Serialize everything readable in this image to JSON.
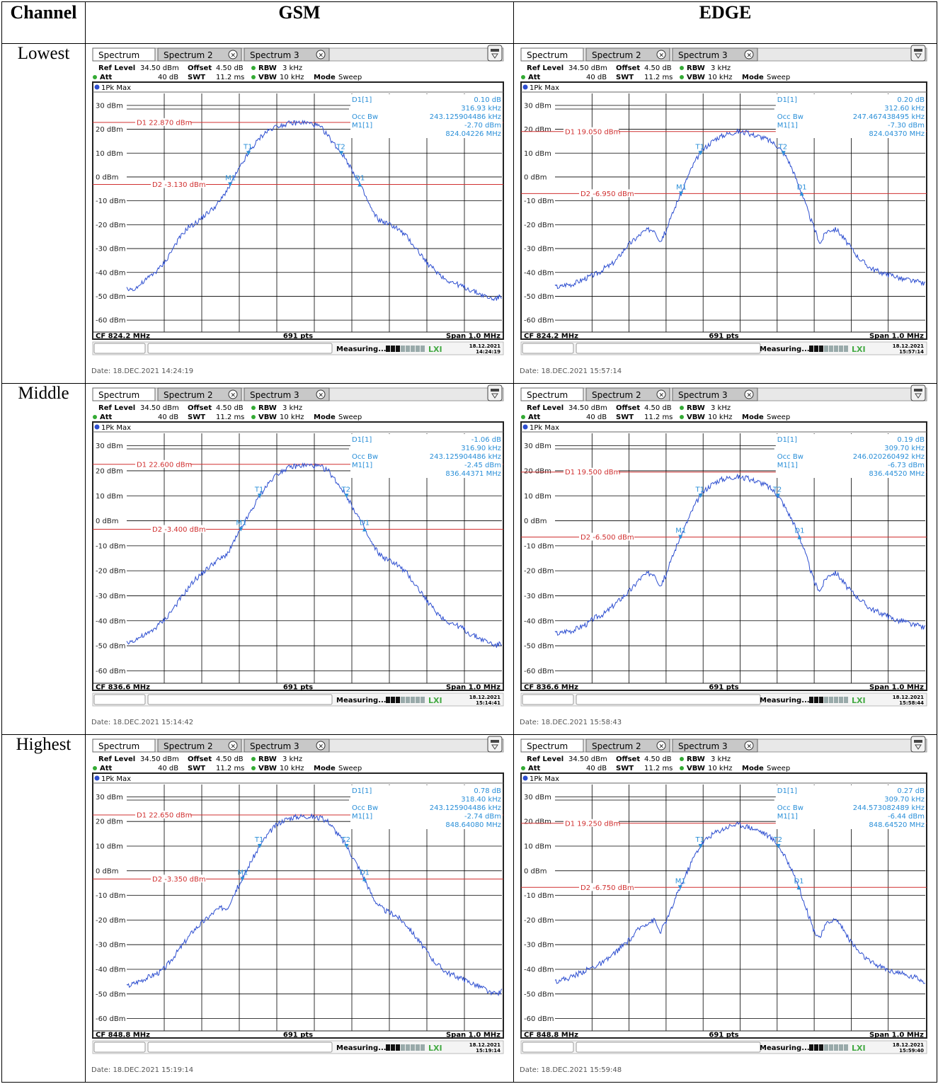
{
  "table": {
    "headers": [
      "Channel",
      "GSM",
      "EDGE"
    ],
    "rows": [
      {
        "label": "Lowest"
      },
      {
        "label": "Middle"
      },
      {
        "label": "Highest"
      }
    ]
  },
  "ui": {
    "tabs": [
      "Spectrum",
      "Spectrum 2",
      "Spectrum 3"
    ],
    "ref_level_label": "Ref Level",
    "ref_level_value": "34.50 dBm",
    "offset_label": "Offset",
    "offset_value": "4.50 dB",
    "rbw_label": "RBW",
    "rbw_value": "3 kHz",
    "att_label": "Att",
    "att_value": "40 dB",
    "swt_label": "SWT",
    "swt_value": "11.2 ms",
    "vbw_label": "VBW",
    "vbw_value": "10 kHz",
    "mode_label": "Mode",
    "mode_value": "Sweep",
    "trace_label": "1Pk Max",
    "pts_label": "691 pts",
    "span_label": "Span 1.0 MHz",
    "measuring_label": "Measuring...",
    "d1_label": "D1[1]",
    "occbw_label": "Occ Bw",
    "m1_label": "M1[1]",
    "y_ticks": [
      "30 dBm",
      "20 dBm",
      "10 dBm",
      "0 dBm",
      "-10 dBm",
      "-20 dBm",
      "-30 dBm",
      "-40 dBm",
      "-50 dBm",
      "-60 dBm"
    ],
    "marker_T1": "T1",
    "marker_T2": "T2",
    "marker_M1": "M1",
    "marker_D1": "D1"
  },
  "chart_data": [
    {
      "type": "line",
      "id": "gsm-lowest",
      "cf": "CF 824.2 MHz",
      "d1_line": "D1 22.870 dBm",
      "d2_line": "D2 -3.130 dBm",
      "d1_db": "0.10 dB",
      "d1_khz": "316.93 kHz",
      "occ_bw": "243.125904486 kHz",
      "m1_dbm": "-2.70 dBm",
      "m1_mhz": "824.04226 MHz",
      "time": "18.12.2021",
      "time2": "14:24:19",
      "date": "Date: 18.DEC.2021  14:24:19",
      "ylim": [
        -65,
        35
      ],
      "d1_level": 22.87,
      "d2_level": -3.13,
      "series": [
        {
          "values": [
            -47,
            -47,
            -46,
            -44,
            -42,
            -40,
            -38,
            -35,
            -31,
            -27,
            -24,
            -21,
            -20,
            -18,
            -16,
            -14,
            -12,
            -9,
            -5,
            -1,
            3,
            7,
            11,
            14,
            17,
            19,
            20.5,
            21.5,
            22,
            22.4,
            22.6,
            22.8,
            22.7,
            22.3,
            21.5,
            20,
            17,
            14,
            11,
            8,
            4,
            0,
            -5,
            -10,
            -15,
            -18,
            -19,
            -20,
            -21,
            -23,
            -25,
            -28,
            -31,
            -34,
            -37,
            -39,
            -41,
            -43,
            -44,
            -45,
            -46,
            -47,
            -48,
            -49,
            -50,
            -51,
            -51,
            -50
          ]
        }
      ]
    },
    {
      "type": "line",
      "id": "edge-lowest",
      "cf": "CF 824.2 MHz",
      "d1_line": "D1 19.050 dBm",
      "d2_line": "D2 -6.950 dBm",
      "d1_db": "0.20 dB",
      "d1_khz": "312.60 kHz",
      "occ_bw": "247.467438495 kHz",
      "m1_dbm": "-7.30 dBm",
      "m1_mhz": "824.04370 MHz",
      "time": "18.12.2021",
      "time2": "15:57:14",
      "date": "Date: 18.DEC.2021  15:57:14",
      "ylim": [
        -65,
        35
      ],
      "d1_level": 19.05,
      "d2_level": -6.95,
      "series": [
        {
          "values": [
            -46,
            -46,
            -45,
            -45,
            -44,
            -43,
            -42,
            -41,
            -40,
            -38,
            -37,
            -35,
            -32,
            -29,
            -27,
            -25,
            -23,
            -22,
            -22,
            -27,
            -23,
            -17,
            -11,
            -6,
            0,
            5,
            9,
            12,
            14,
            16,
            17,
            18,
            18.5,
            19,
            18.8,
            18.2,
            17.6,
            17,
            16.2,
            15,
            13.5,
            11,
            8,
            3,
            -3,
            -9,
            -16,
            -22,
            -28,
            -23,
            -22,
            -22,
            -25,
            -28,
            -31,
            -34,
            -36,
            -38,
            -39,
            -40,
            -41,
            -41,
            -42,
            -43,
            -43,
            -44,
            -44,
            -45
          ]
        }
      ]
    },
    {
      "type": "line",
      "id": "gsm-middle",
      "cf": "CF 836.6 MHz",
      "d1_line": "D1 22.600 dBm",
      "d2_line": "D2 -3.400 dBm",
      "d1_db": "-1.06 dB",
      "d1_khz": "316.90 kHz",
      "occ_bw": "243.125904486 kHz",
      "m1_dbm": "-2.45 dBm",
      "m1_mhz": "836.44371 MHz",
      "time": "18.12.2021",
      "time2": "15:14:41",
      "date": "Date: 18.DEC.2021  15:14:42",
      "ylim": [
        -65,
        35
      ],
      "d1_level": 22.6,
      "d2_level": -3.4,
      "series": [
        {
          "values": [
            -49,
            -48,
            -47,
            -46,
            -45,
            -43,
            -41,
            -39,
            -36,
            -33,
            -30,
            -27,
            -24,
            -22,
            -20,
            -18,
            -16,
            -15,
            -13,
            -9,
            -5,
            -1,
            3,
            7,
            11,
            14,
            17,
            19,
            20.5,
            21.2,
            21.8,
            22,
            22.2,
            22.1,
            21.8,
            21.2,
            20,
            17,
            14,
            11,
            7,
            3,
            -1,
            -6,
            -10,
            -13,
            -15,
            -16,
            -17,
            -19,
            -21,
            -24,
            -27,
            -30,
            -33,
            -36,
            -38,
            -40,
            -41,
            -42,
            -43,
            -45,
            -46,
            -47,
            -48,
            -49,
            -50,
            -49
          ]
        }
      ]
    },
    {
      "type": "line",
      "id": "edge-middle",
      "cf": "CF 836.6 MHz",
      "d1_line": "D1 19.500 dBm",
      "d2_line": "D2 -6.500 dBm",
      "d1_db": "0.19 dB",
      "d1_khz": "309.70 kHz",
      "occ_bw": "246.020260492 kHz",
      "m1_dbm": "-6.73 dBm",
      "m1_mhz": "836.44520 MHz",
      "time": "18.12.2021",
      "time2": "15:58:44",
      "date": "Date: 18.DEC.2021  15:58:43",
      "ylim": [
        -65,
        35
      ],
      "d1_level": 19.5,
      "d2_level": -6.5,
      "series": [
        {
          "values": [
            -45,
            -45,
            -44,
            -44,
            -43,
            -42,
            -41,
            -39,
            -38,
            -37,
            -35,
            -33,
            -31,
            -29,
            -27,
            -24,
            -22,
            -21,
            -21,
            -26,
            -22,
            -16,
            -10,
            -5,
            0,
            5,
            9,
            12,
            14,
            15.5,
            16.5,
            17,
            17.5,
            17.6,
            17.2,
            16.8,
            16.2,
            15.5,
            14.5,
            13,
            11,
            8,
            4,
            0,
            -5,
            -11,
            -18,
            -25,
            -28,
            -23,
            -21,
            -21,
            -24,
            -27,
            -29,
            -31,
            -33,
            -35,
            -36,
            -37,
            -38,
            -39,
            -40,
            -40,
            -41,
            -42,
            -42,
            -43
          ]
        }
      ]
    },
    {
      "type": "line",
      "id": "gsm-highest",
      "cf": "CF 848.8 MHz",
      "d1_line": "D1 22.650 dBm",
      "d2_line": "D2 -3.350 dBm",
      "d1_db": "0.78 dB",
      "d1_khz": "318.40 kHz",
      "occ_bw": "243.125904486 kHz",
      "m1_dbm": "-2.74 dBm",
      "m1_mhz": "848.64080 MHz",
      "time": "18.12.2021",
      "time2": "15:19:14",
      "date": "Date: 18.DEC.2021  15:19:14",
      "ylim": [
        -65,
        35
      ],
      "d1_level": 22.65,
      "d2_level": -3.35,
      "series": [
        {
          "values": [
            -47,
            -46,
            -45,
            -44,
            -43,
            -42,
            -41,
            -39,
            -36,
            -33,
            -30,
            -27,
            -24,
            -22,
            -20,
            -18,
            -16,
            -15,
            -15,
            -10,
            -6,
            -2,
            3,
            7,
            11,
            14,
            17,
            19,
            20.5,
            21.3,
            21.8,
            22.1,
            22.2,
            22,
            21.6,
            21,
            20,
            17,
            14,
            11,
            7,
            3,
            -1,
            -6,
            -11,
            -14,
            -16,
            -17,
            -18,
            -20,
            -22,
            -25,
            -28,
            -31,
            -34,
            -37,
            -39,
            -41,
            -42,
            -43,
            -44,
            -45,
            -46,
            -47,
            -48,
            -50,
            -50,
            -49
          ]
        }
      ]
    },
    {
      "type": "line",
      "id": "edge-highest",
      "cf": "CF 848.8 MHz",
      "d1_line": "D1 19.250 dBm",
      "d2_line": "D2 -6.750 dBm",
      "d1_db": "0.27 dB",
      "d1_khz": "309.70 kHz",
      "occ_bw": "244.573082489 kHz",
      "m1_dbm": "-6.44 dBm",
      "m1_mhz": "848.64520 MHz",
      "time": "18.12.2021",
      "time2": "15:59:40",
      "date": "Date: 18.DEC.2021  15:59:48",
      "ylim": [
        -65,
        35
      ],
      "d1_level": 19.25,
      "d2_level": -6.75,
      "series": [
        {
          "values": [
            -45,
            -44,
            -44,
            -43,
            -42,
            -41,
            -40,
            -39,
            -38,
            -37,
            -35,
            -33,
            -31,
            -29,
            -27,
            -24,
            -22,
            -21,
            -20,
            -25,
            -21,
            -16,
            -10,
            -5,
            0,
            5,
            9,
            12,
            14,
            15.5,
            16.5,
            17.5,
            18.5,
            18.8,
            18.4,
            17.8,
            17,
            16.2,
            15,
            13.5,
            11.5,
            8,
            4,
            0,
            -6,
            -12,
            -19,
            -25,
            -27,
            -22,
            -20,
            -20,
            -23,
            -27,
            -30,
            -33,
            -35,
            -37,
            -38,
            -39,
            -40,
            -41,
            -41,
            -42,
            -43,
            -43,
            -44,
            -45
          ]
        }
      ]
    }
  ]
}
